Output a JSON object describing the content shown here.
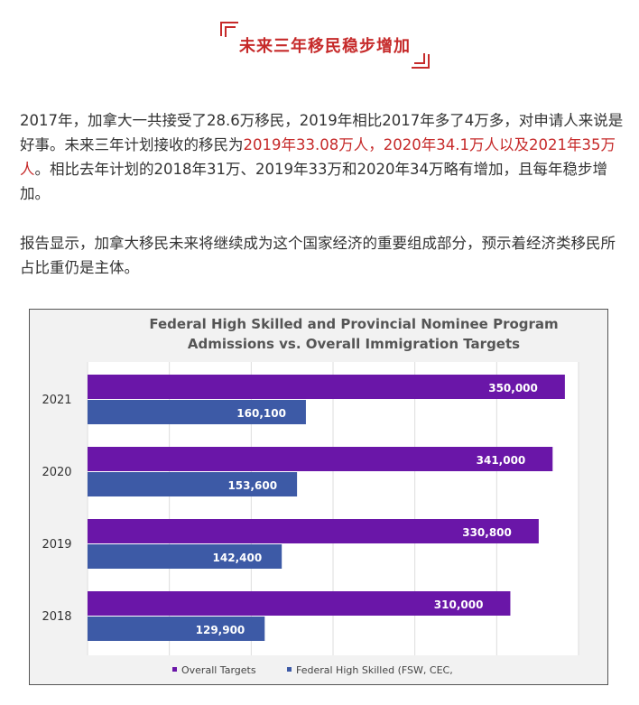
{
  "heading": "未来三年移民稳步增加",
  "paragraph1": {
    "part1": "2017年，加拿大一共接受了28.6万移民，2019年相比2017年多了4万多，对申请人来说是好事。未来三年计划接收的移民为",
    "highlight": "2019年33.08万人，2020年34.1万人以及2021年35万人",
    "part2": "。相比去年计划的2018年31万、2019年33万和2020年34万略有增加，且每年稳步增加。"
  },
  "paragraph2": "报告显示，加拿大移民未来将继续成为这个国家经济的重要组成部分，预示着经济类移民所占比重仍是主体。",
  "colors": {
    "accent_red": "#c62a2a",
    "overall_bar": "#6a16a8",
    "federal_bar": "#3d5aa6",
    "chart_bg": "#f2f2f2"
  },
  "chart_data": {
    "type": "bar",
    "orientation": "horizontal",
    "title_line1": "Federal High Skilled and Provincial Nominee Program",
    "title_line2": "Admissions vs. Overall Immigration Targets",
    "categories": [
      "2021",
      "2020",
      "2019",
      "2018"
    ],
    "series": [
      {
        "name": "Overall Targets",
        "values": [
          350000,
          341000,
          330800,
          310000
        ],
        "labels": [
          "350,000",
          "341,000",
          "330,800",
          "310,000"
        ]
      },
      {
        "name": "Federal High Skilled (FSW, CEC,",
        "values": [
          160100,
          153600,
          142400,
          129900
        ],
        "labels": [
          "160,100",
          "153,600",
          "142,400",
          "129,900"
        ]
      }
    ],
    "xlim": [
      0,
      360000
    ],
    "grid": true,
    "legend": "bottom"
  }
}
